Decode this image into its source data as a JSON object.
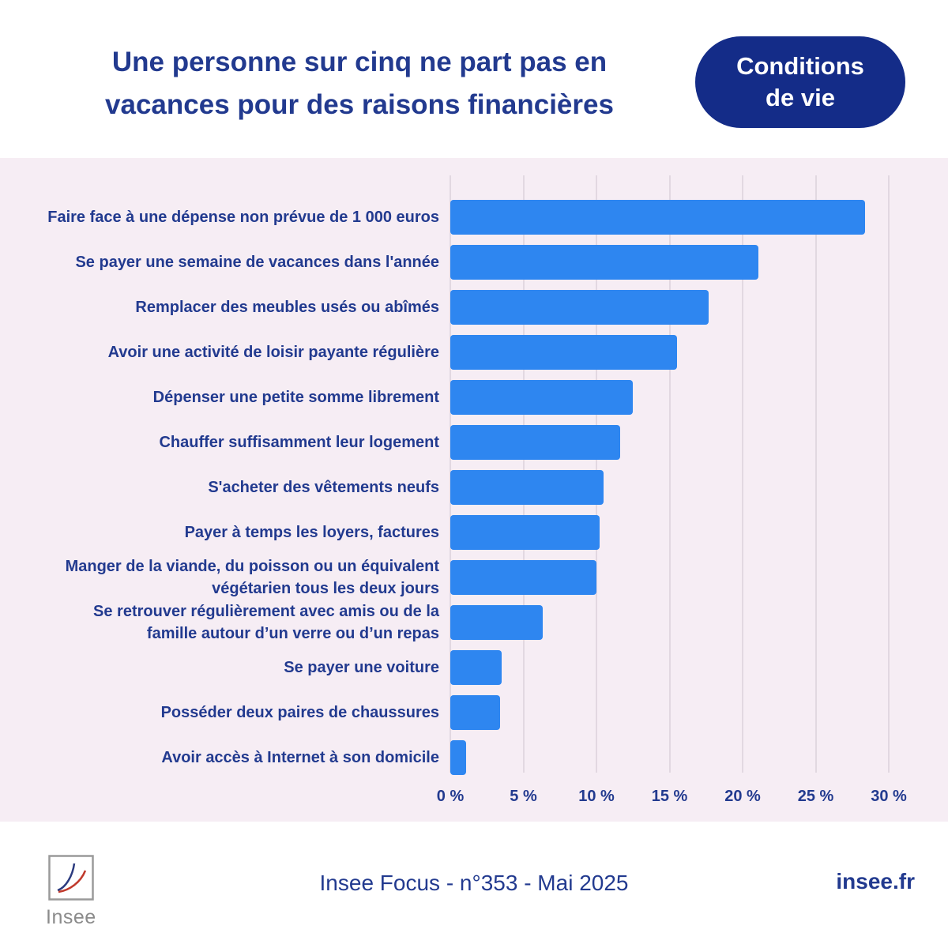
{
  "colors": {
    "navy": "#223A8F",
    "badge_bg": "#142C88",
    "bar_blue": "#2E86F0",
    "chart_bg": "#F6EDF4",
    "gridline": "#E2D8E1",
    "logo_gray": "#8B8B8B"
  },
  "header": {
    "title_line1": "Une personne sur cinq ne part pas en",
    "title_line2": "vacances pour des raisons financières",
    "badge_line1": "Conditions",
    "badge_line2": "de vie"
  },
  "chart_data": {
    "type": "bar",
    "orientation": "horizontal",
    "title": "Une personne sur cinq ne part pas en vacances pour des raisons financières",
    "categories": [
      "Faire face à une dépense non prévue de 1 000 euros",
      "Se payer une semaine de vacances dans l'année",
      "Remplacer des meubles usés ou abîmés",
      "Avoir une activité de loisir payante régulière",
      "Dépenser une petite somme librement",
      "Chauffer suffisamment leur logement",
      "S'acheter des vêtements neufs",
      "Payer à temps les loyers, factures",
      "Manger de la viande, du poisson ou un équivalent\nvégétarien tous les deux jours",
      "Se retrouver régulièrement avec amis ou de la\nfamille autour d’un verre ou d’un repas",
      "Se payer une voiture",
      "Posséder deux paires de chaussures",
      "Avoir accès à Internet à son domicile"
    ],
    "values": [
      28.4,
      21.1,
      17.7,
      15.5,
      12.5,
      11.6,
      10.5,
      10.2,
      10.0,
      6.3,
      3.5,
      3.4,
      1.1
    ],
    "unit": "%",
    "xlim": [
      0,
      30
    ],
    "tick_values": [
      0,
      5,
      10,
      15,
      20,
      25,
      30
    ],
    "x_ticks": [
      "0 %",
      "5 %",
      "10 %",
      "15 %",
      "20 %",
      "25 %",
      "30 %"
    ],
    "grid": true,
    "legend": "none"
  },
  "footer": {
    "source": "Insee Focus - n°353 - Mai 2025",
    "site": "insee.fr",
    "logo_text": "Insee"
  }
}
